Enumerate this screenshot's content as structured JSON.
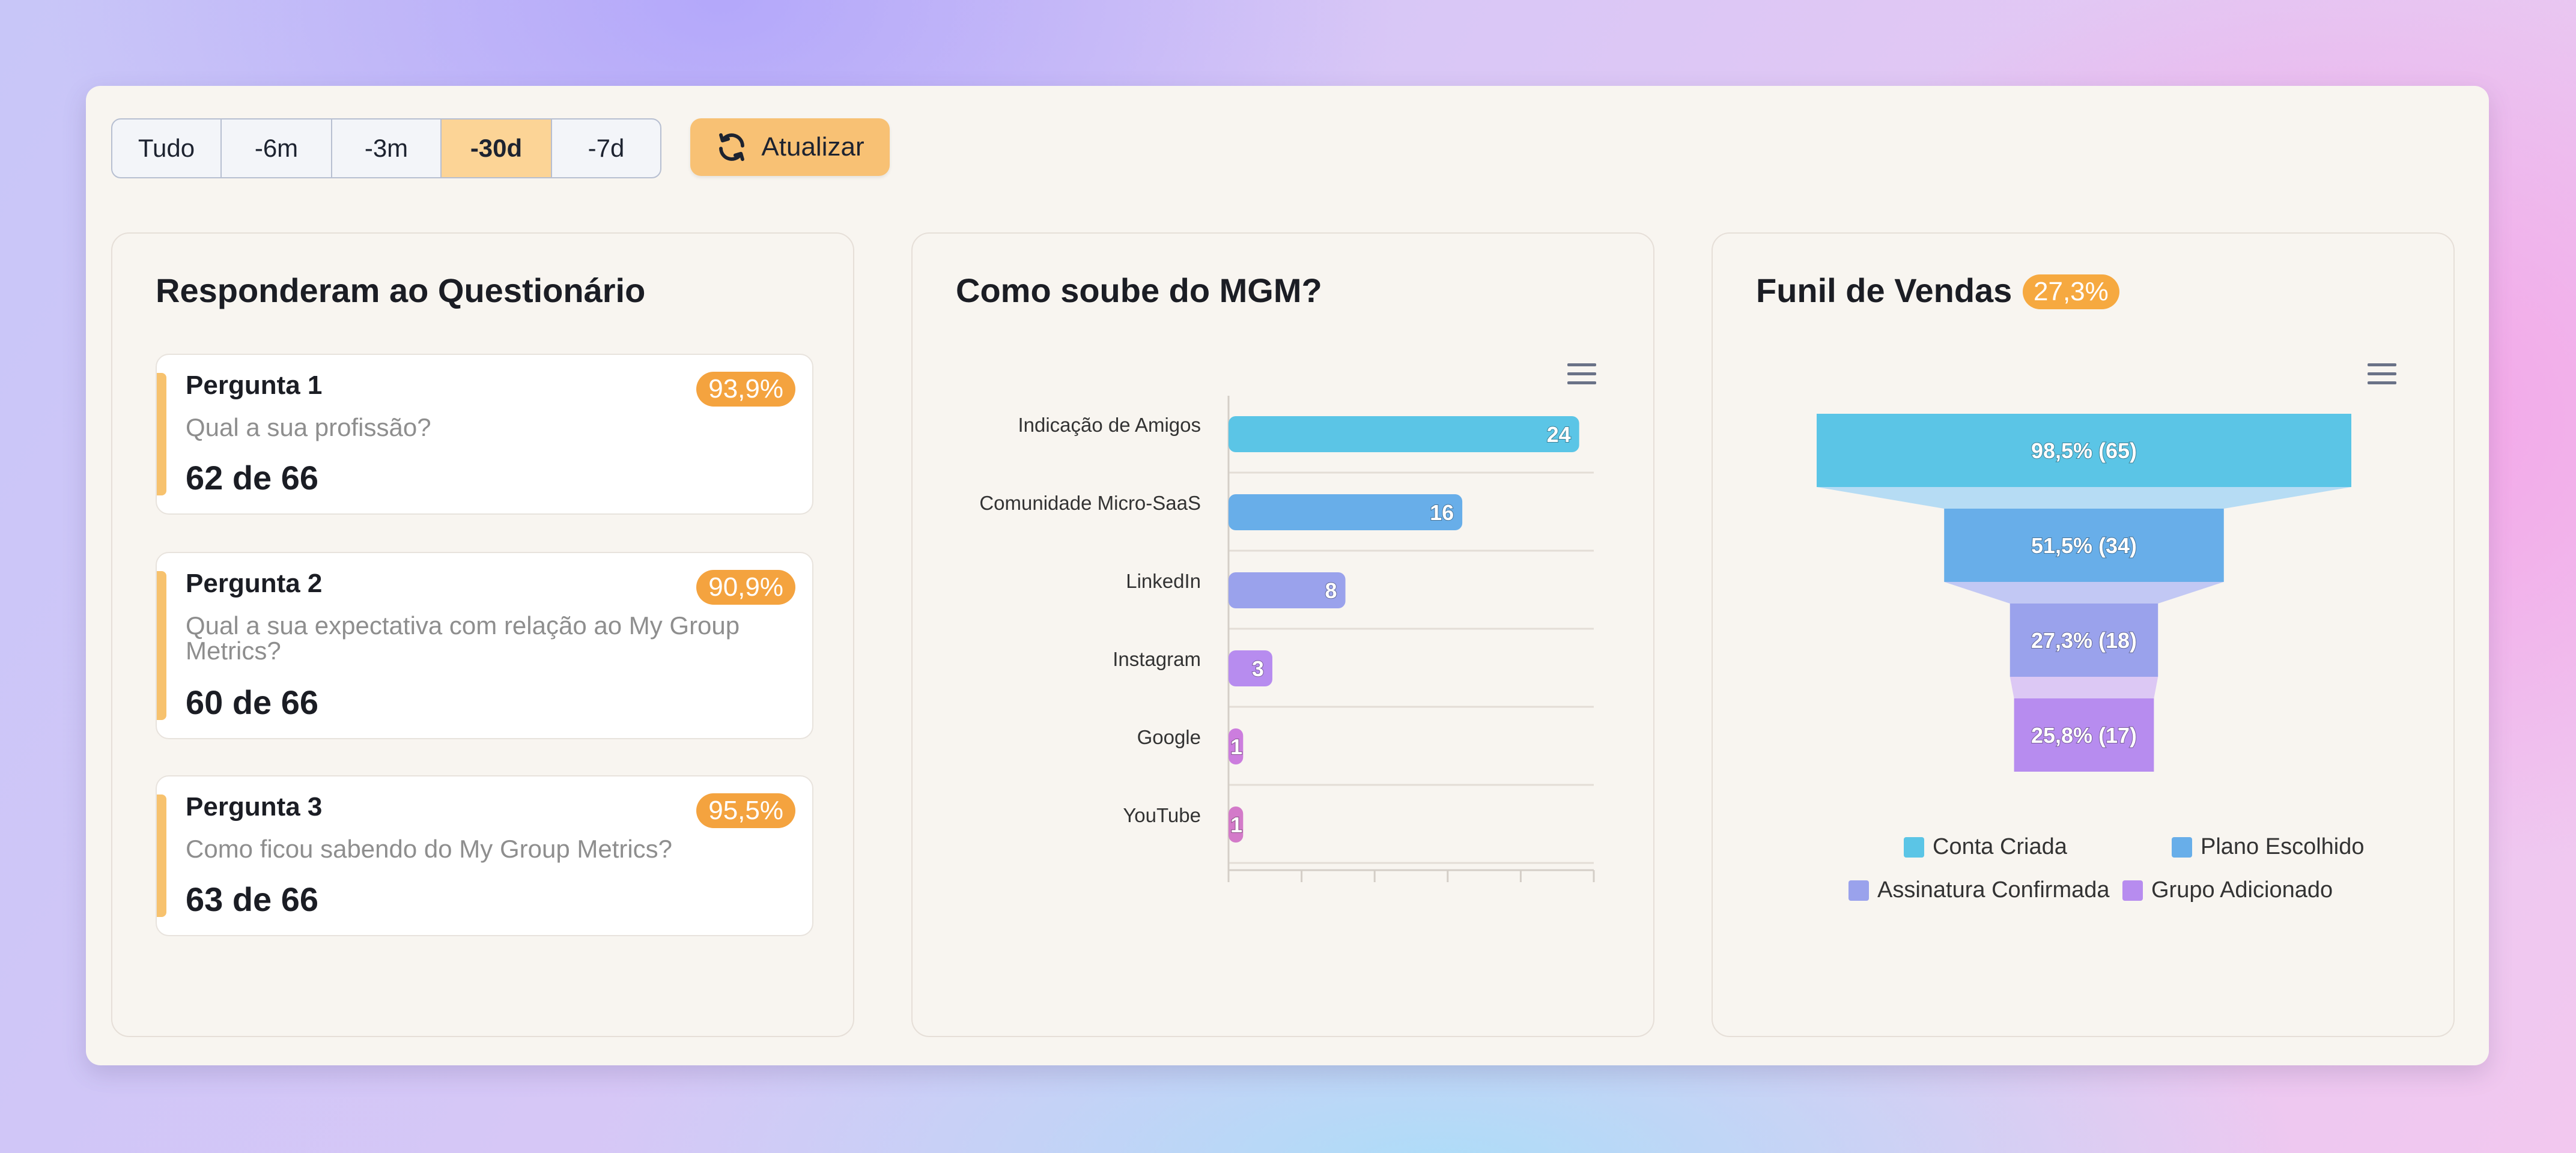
{
  "filters": {
    "options": [
      "Tudo",
      "-6m",
      "-3m",
      "-30d",
      "-7d"
    ],
    "active": "-30d",
    "refresh_label": "Atualizar"
  },
  "questionnaire": {
    "title": "Responderam ao Questionário",
    "questions": [
      {
        "title": "Pergunta 1",
        "text": "Qual a sua profissão?",
        "count": "62 de 66",
        "pct": "93,9%"
      },
      {
        "title": "Pergunta 2",
        "text": "Qual a sua expectativa com relação ao My Group Metrics?",
        "count": "60 de 66",
        "pct": "90,9%"
      },
      {
        "title": "Pergunta 3",
        "text": "Como ficou sabendo do My Group Metrics?",
        "count": "63 de 66",
        "pct": "95,5%"
      }
    ]
  },
  "colors": {
    "accent": "#f6a940",
    "bars": [
      "#5bc5e6",
      "#68aee9",
      "#9aa2ec",
      "#b78cef",
      "#cc7dde",
      "#d37ac9"
    ],
    "funnel": [
      "#5bc5e6",
      "#68aee9",
      "#9aa2ec",
      "#b78cef"
    ],
    "funnel_neck": [
      "#b6dcf4",
      "#c2c8f4",
      "#dcc8f4"
    ]
  },
  "mgm": {
    "title": "Como soube do MGM?",
    "menu_icon": "hamburger-menu-icon"
  },
  "funnel": {
    "title": "Funil de Vendas",
    "badge": "27,3%",
    "menu_icon": "hamburger-menu-icon",
    "labels": [
      "98,5% (65)",
      "51,5% (34)",
      "27,3% (18)",
      "25,8% (17)"
    ],
    "legend": [
      "Conta Criada",
      "Plano Escolhido",
      "Assinatura Confirmada",
      "Grupo Adicionado"
    ]
  },
  "chart_data": [
    {
      "type": "bar",
      "orientation": "horizontal",
      "title": "Como soube do MGM?",
      "categories": [
        "Indicação de Amigos",
        "Comunidade Micro-SaaS",
        "LinkedIn",
        "Instagram",
        "Google",
        "YouTube"
      ],
      "values": [
        24,
        16,
        8,
        3,
        1,
        1
      ],
      "xlim": [
        0,
        25
      ],
      "grid": true,
      "data_labels": true
    },
    {
      "type": "funnel",
      "title": "Funil de Vendas",
      "categories": [
        "Conta Criada",
        "Plano Escolhido",
        "Assinatura Confirmada",
        "Grupo Adicionado"
      ],
      "values": [
        65,
        34,
        18,
        17
      ],
      "percentages": [
        98.5,
        51.5,
        27.3,
        25.8
      ],
      "legend": "bottom"
    }
  ]
}
